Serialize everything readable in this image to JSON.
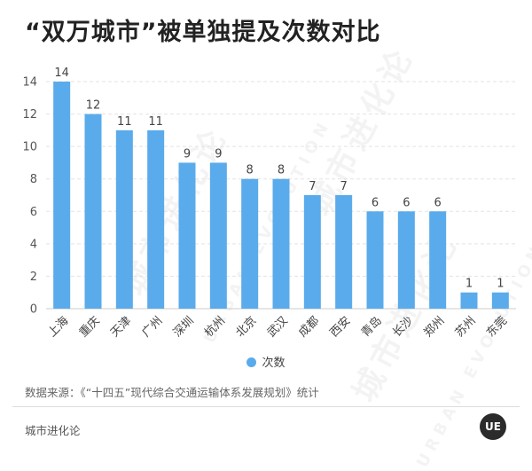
{
  "title": "“双万城市”被单独提及次数对比",
  "chart_data": {
    "type": "bar",
    "categories": [
      "上海",
      "重庆",
      "天津",
      "广州",
      "深圳",
      "杭州",
      "北京",
      "武汉",
      "成都",
      "西安",
      "青岛",
      "长沙",
      "郑州",
      "苏州",
      "东莞"
    ],
    "series": [
      {
        "name": "次数",
        "values": [
          14,
          12,
          11,
          11,
          9,
          9,
          8,
          8,
          7,
          7,
          6,
          6,
          6,
          1,
          1
        ],
        "color": "#5aabeb"
      }
    ],
    "yticks": [
      0,
      2,
      4,
      6,
      8,
      10,
      12,
      14
    ],
    "ylim": [
      0,
      14
    ],
    "grid": true,
    "legend_position": "bottom-center",
    "data_labels": true
  },
  "legend": {
    "label": "次数",
    "color": "#5aabeb"
  },
  "source": "数据来源：《“十四五”现代综合交通运输体系发展规划》统计",
  "footer": {
    "brand": "城市进化论",
    "badge": "UE"
  },
  "watermark": {
    "text": "城市进化论",
    "subtext": "URBAN EVOLUTION"
  }
}
